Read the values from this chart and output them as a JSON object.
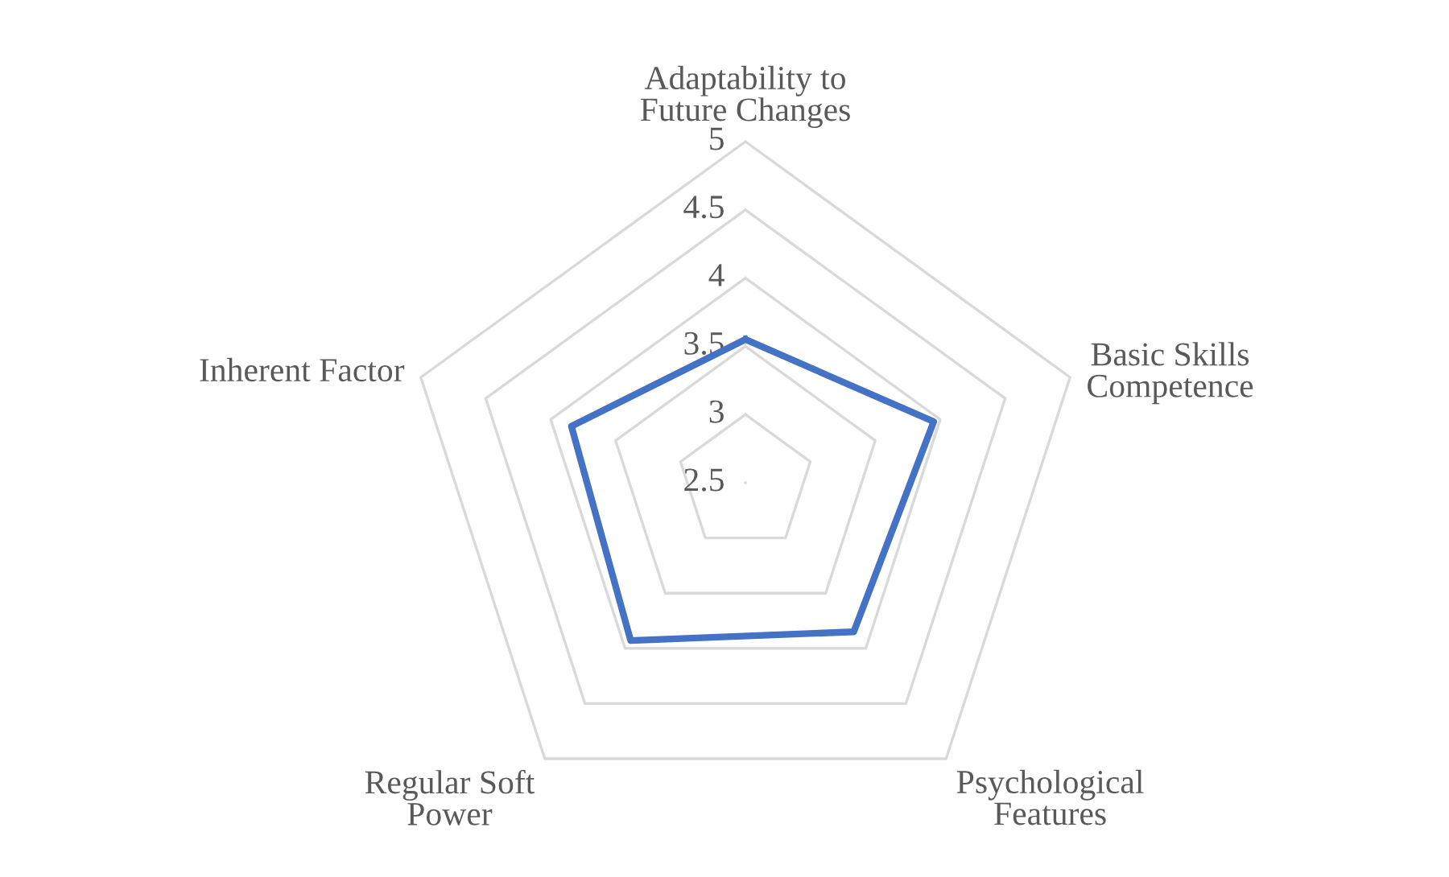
{
  "chart_data": {
    "type": "radar",
    "categories": [
      "Adaptability to\nFuture Changes",
      "Basic Skills\nCompetence",
      "Psychological\nFeatures",
      "Regular Soft\nPower",
      "Inherent Factor"
    ],
    "series": [
      {
        "color": "#4472c4",
        "values": [
          3.55,
          3.95,
          3.85,
          3.93,
          3.84
        ]
      }
    ],
    "ylim": [
      2.5,
      5
    ],
    "yticks": [
      2.5,
      3,
      3.5,
      4,
      4.5,
      5
    ],
    "grid": true,
    "marker": "none",
    "line_style": "solid"
  }
}
